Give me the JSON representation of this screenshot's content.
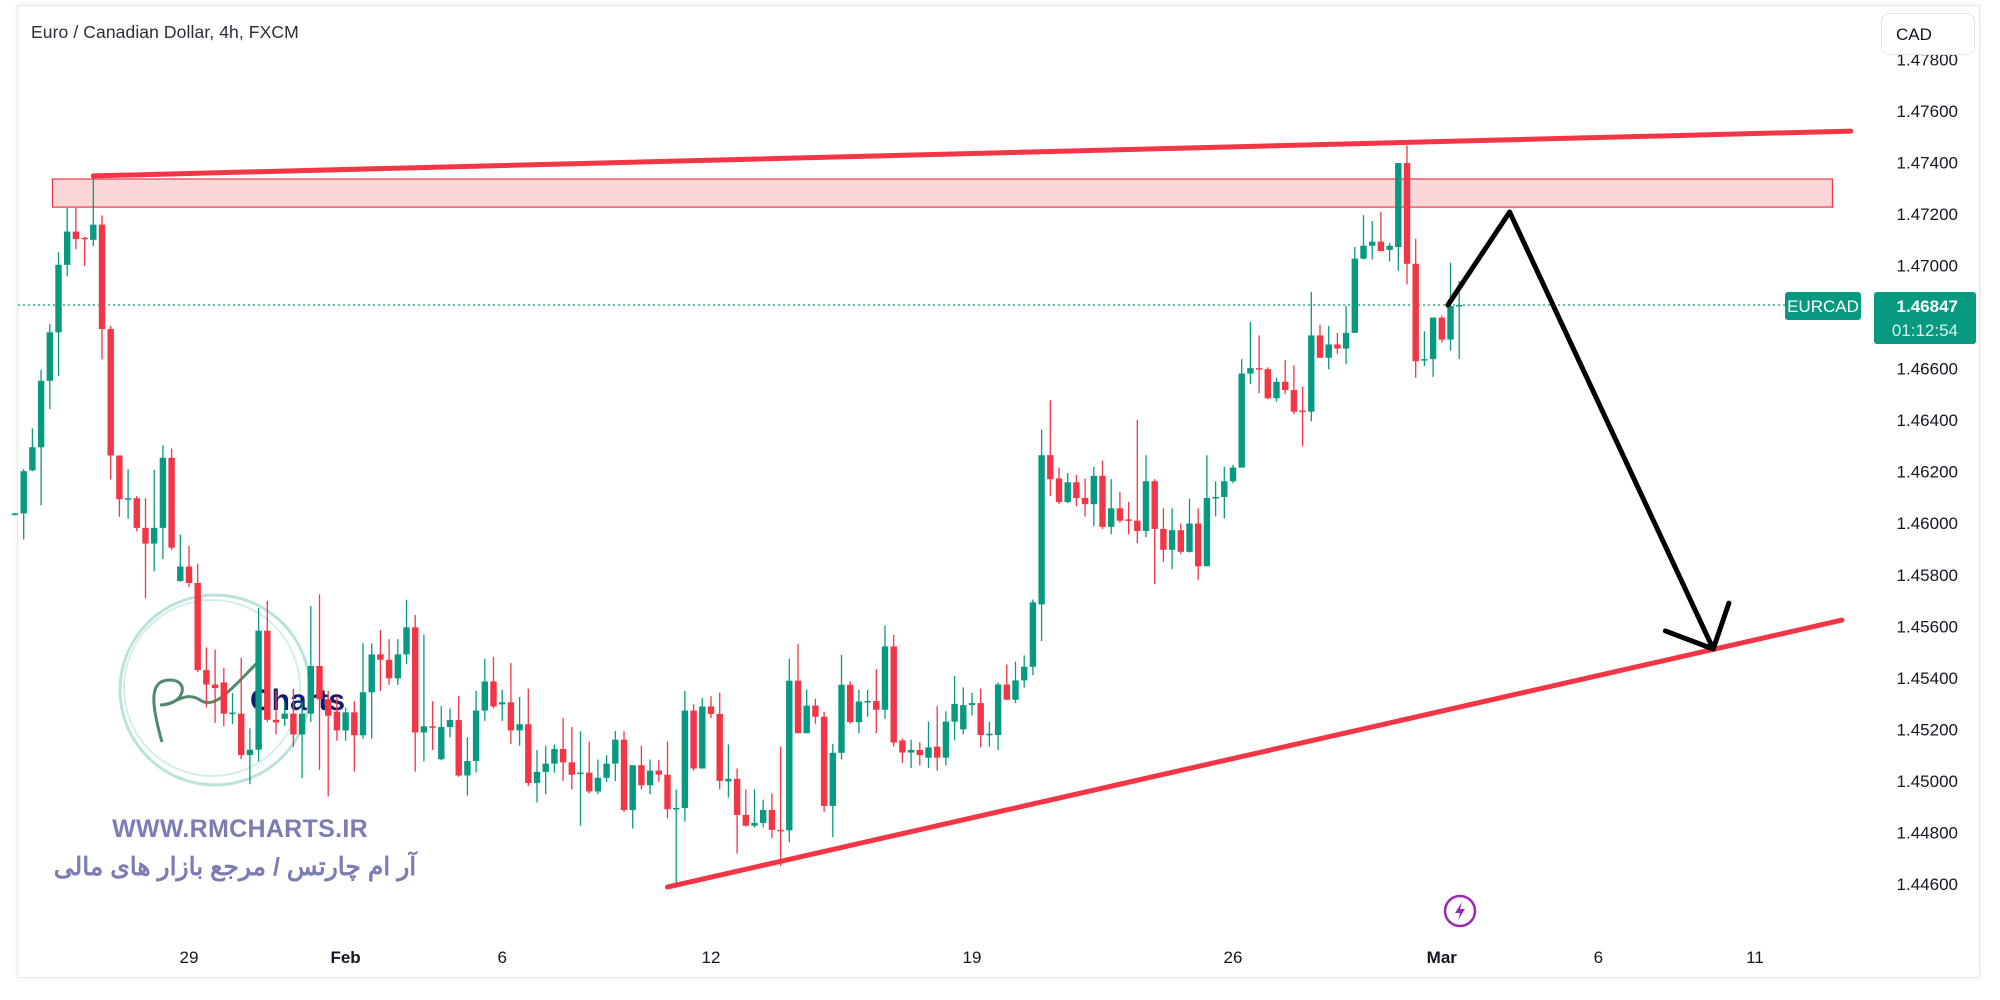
{
  "header": {
    "title": "Euro / Canadian Dollar, 4h, FXCM",
    "currency_button": "CAD"
  },
  "price_badge": {
    "symbol": "EURCAD",
    "price": "1.46847",
    "countdown": "01:12:54",
    "color": "#089981"
  },
  "watermark": {
    "logo_text": "Charts",
    "url": "WWW.RMCHARTS.IR",
    "tagline": "آر ام چارتس / مرجع بازار های مالی",
    "color": "#7b7cb3"
  },
  "event_icon": "lightning-icon",
  "colors": {
    "up": "#089981",
    "down": "#f23645",
    "drawing": "#f23645",
    "arrow": "#000000",
    "zone_fill": "#f2364533"
  },
  "chart_data": {
    "type": "candlestick",
    "title": "Euro / Canadian Dollar, 4h, FXCM",
    "symbol": "EURCAD",
    "interval": "4h",
    "ylim": [
      1.445,
      1.4785
    ],
    "grid": false,
    "y_ticks": [
      "1.47800",
      "1.47600",
      "1.47400",
      "1.47200",
      "1.47000",
      "1.46600",
      "1.46400",
      "1.46200",
      "1.46000",
      "1.45800",
      "1.45600",
      "1.45400",
      "1.45200",
      "1.45000",
      "1.44800",
      "1.44600"
    ],
    "x_ticks": [
      {
        "label": "29",
        "bar": 20,
        "bold": false
      },
      {
        "label": "Feb",
        "bar": 38,
        "bold": true
      },
      {
        "label": "6",
        "bar": 56,
        "bold": false
      },
      {
        "label": "12",
        "bar": 80,
        "bold": false
      },
      {
        "label": "19",
        "bar": 110,
        "bold": false
      },
      {
        "label": "26",
        "bar": 140,
        "bold": false
      },
      {
        "label": "Mar",
        "bar": 164,
        "bold": true
      },
      {
        "label": "6",
        "bar": 182,
        "bold": false
      },
      {
        "label": "11",
        "bar": 200,
        "bold": false
      }
    ],
    "last_price": 1.46847,
    "ohlc_fields": [
      "open",
      "high",
      "low",
      "close"
    ],
    "candles": [
      [
        1.46036,
        1.4604,
        1.4603,
        1.46038
      ],
      [
        1.46038,
        1.4621,
        1.45937,
        1.46202
      ],
      [
        1.46205,
        1.46368,
        1.46202,
        1.46295
      ],
      [
        1.46295,
        1.46596,
        1.4607,
        1.46553
      ],
      [
        1.46553,
        1.46773,
        1.46443,
        1.46741
      ],
      [
        1.46741,
        1.47052,
        1.46572,
        1.47003
      ],
      [
        1.47003,
        1.47224,
        1.46958,
        1.47132
      ],
      [
        1.47132,
        1.47224,
        1.47063,
        1.47103
      ],
      [
        1.47108,
        1.47111,
        1.46998,
        1.47103
      ],
      [
        1.471,
        1.47352,
        1.47076,
        1.47159
      ],
      [
        1.47159,
        1.47195,
        1.46636,
        1.46754
      ],
      [
        1.46754,
        1.46765,
        1.4617,
        1.46263
      ],
      [
        1.46263,
        1.46263,
        1.46025,
        1.46093
      ],
      [
        1.46093,
        1.4621,
        1.46017,
        1.46097
      ],
      [
        1.46097,
        1.46106,
        1.45969,
        1.45982
      ],
      [
        1.45982,
        1.46097,
        1.45708,
        1.45921
      ],
      [
        1.45921,
        1.46207,
        1.45813,
        1.45982
      ],
      [
        1.45982,
        1.46302,
        1.45861,
        1.46254
      ],
      [
        1.46254,
        1.4629,
        1.45896,
        1.45905
      ],
      [
        1.45776,
        1.45956,
        1.45773,
        1.45832
      ],
      [
        1.45832,
        1.45912,
        1.45752,
        1.45768
      ],
      [
        1.45768,
        1.45843,
        1.45422,
        1.4543
      ],
      [
        1.4543,
        1.45518,
        1.45285,
        1.45374
      ],
      [
        1.45374,
        1.4551,
        1.45225,
        1.4536
      ],
      [
        1.45382,
        1.45438,
        1.45212,
        1.45261
      ],
      [
        1.45261,
        1.45341,
        1.45221,
        1.45265
      ],
      [
        1.45261,
        1.45478,
        1.45084,
        1.451
      ],
      [
        1.451,
        1.45204,
        1.44987,
        1.45121
      ],
      [
        1.45121,
        1.45671,
        1.45076,
        1.45583
      ],
      [
        1.45583,
        1.45699,
        1.45229,
        1.45237
      ],
      [
        1.45237,
        1.4535,
        1.4518,
        1.45227
      ],
      [
        1.45241,
        1.45309,
        1.45213,
        1.45261
      ],
      [
        1.45261,
        1.45357,
        1.45132,
        1.4518
      ],
      [
        1.4518,
        1.45309,
        1.45011,
        1.45261
      ],
      [
        1.45261,
        1.45679,
        1.45229,
        1.45446
      ],
      [
        1.45446,
        1.45724,
        1.45043,
        1.45317
      ],
      [
        1.45317,
        1.4535,
        1.44939,
        1.45253
      ],
      [
        1.45269,
        1.45328,
        1.45156,
        1.45196
      ],
      [
        1.45196,
        1.45285,
        1.45156,
        1.45266
      ],
      [
        1.45266,
        1.45309,
        1.45036,
        1.45177
      ],
      [
        1.45177,
        1.45534,
        1.45164,
        1.45344
      ],
      [
        1.45344,
        1.45534,
        1.45164,
        1.45491
      ],
      [
        1.45491,
        1.45586,
        1.45349,
        1.4547
      ],
      [
        1.4547,
        1.4555,
        1.45373,
        1.45398
      ],
      [
        1.45398,
        1.4555,
        1.45373,
        1.45491
      ],
      [
        1.45491,
        1.45703,
        1.45454,
        1.45596
      ],
      [
        1.45596,
        1.45644,
        1.45036,
        1.45188
      ],
      [
        1.45188,
        1.45567,
        1.45076,
        1.45212
      ],
      [
        1.45212,
        1.45309,
        1.4512,
        1.4521
      ],
      [
        1.45084,
        1.4529,
        1.4508,
        1.45209
      ],
      [
        1.45209,
        1.45281,
        1.45169,
        1.45236
      ],
      [
        1.45236,
        1.45329,
        1.45016,
        1.45021
      ],
      [
        1.45021,
        1.45169,
        1.44943,
        1.45077
      ],
      [
        1.45077,
        1.45349,
        1.45032,
        1.45273
      ],
      [
        1.45273,
        1.45474,
        1.45233,
        1.45386
      ],
      [
        1.45386,
        1.45482,
        1.45281,
        1.45289
      ],
      [
        1.45297,
        1.45354,
        1.45233,
        1.45305
      ],
      [
        1.45305,
        1.45458,
        1.45144,
        1.45196
      ],
      [
        1.45196,
        1.45326,
        1.45136,
        1.4522
      ],
      [
        1.4522,
        1.45358,
        1.4498,
        1.44992
      ],
      [
        1.44992,
        1.4512,
        1.44916,
        1.45035
      ],
      [
        1.45035,
        1.45136,
        1.44948,
        1.45067
      ],
      [
        1.45067,
        1.45141,
        1.45032,
        1.45124
      ],
      [
        1.45124,
        1.45244,
        1.45,
        1.45072
      ],
      [
        1.45072,
        1.45209,
        1.44967,
        1.45024
      ],
      [
        1.45027,
        1.45193,
        1.44826,
        1.45032
      ],
      [
        1.45032,
        1.45153,
        1.44951,
        1.44959
      ],
      [
        1.44959,
        1.45083,
        1.44948,
        1.45012
      ],
      [
        1.45012,
        1.45099,
        1.44996,
        1.45067
      ],
      [
        1.45067,
        1.45193,
        1.44999,
        1.4516
      ],
      [
        1.4516,
        1.45193,
        1.44879,
        1.44887
      ],
      [
        1.44887,
        1.45061,
        1.44815,
        1.45061
      ],
      [
        1.45061,
        1.45136,
        1.44967,
        1.44983
      ],
      [
        1.44983,
        1.45083,
        1.44948,
        1.4504
      ],
      [
        1.4504,
        1.4508,
        1.44996,
        1.45024
      ],
      [
        1.45024,
        1.45153,
        1.44855,
        1.4489
      ],
      [
        1.4489,
        1.44967,
        1.44589,
        1.44895
      ],
      [
        1.44895,
        1.45349,
        1.44842,
        1.45273
      ],
      [
        1.45273,
        1.45297,
        1.4504,
        1.45048
      ],
      [
        1.45048,
        1.45321,
        1.45048,
        1.45289
      ],
      [
        1.45289,
        1.45329,
        1.45244,
        1.4526
      ],
      [
        1.4526,
        1.45342,
        1.44967,
        1.45
      ],
      [
        1.44998,
        1.45141,
        1.44935,
        1.45008
      ],
      [
        1.45008,
        1.45048,
        1.44718,
        1.44868
      ],
      [
        1.44868,
        1.44967,
        1.44823,
        1.44826
      ],
      [
        1.44826,
        1.44967,
        1.44819,
        1.44837
      ],
      [
        1.44837,
        1.44927,
        1.44819,
        1.44887
      ],
      [
        1.44887,
        1.44951,
        1.44778,
        1.4481
      ],
      [
        1.4481,
        1.45132,
        1.4467,
        1.44808
      ],
      [
        1.44808,
        1.45474,
        1.44762,
        1.45389
      ],
      [
        1.45389,
        1.45531,
        1.45185,
        1.45185
      ],
      [
        1.45185,
        1.45354,
        1.45185,
        1.45292
      ],
      [
        1.45292,
        1.45318,
        1.45222,
        1.45249
      ],
      [
        1.45249,
        1.45268,
        1.44879,
        1.44903
      ],
      [
        1.44903,
        1.45144,
        1.44782,
        1.45109
      ],
      [
        1.45109,
        1.4549,
        1.45083,
        1.45373
      ],
      [
        1.45373,
        1.45386,
        1.45222,
        1.45228
      ],
      [
        1.45228,
        1.45354,
        1.45185,
        1.45308
      ],
      [
        1.45308,
        1.45354,
        1.45249,
        1.4531
      ],
      [
        1.4531,
        1.45434,
        1.45185,
        1.45276
      ],
      [
        1.45276,
        1.45603,
        1.45241,
        1.45522
      ],
      [
        1.45522,
        1.45567,
        1.45133,
        1.45149
      ],
      [
        1.45157,
        1.45165,
        1.4507,
        1.4511
      ],
      [
        1.4511,
        1.4516,
        1.4505,
        1.4512
      ],
      [
        1.4512,
        1.4515,
        1.4506,
        1.451
      ],
      [
        1.4509,
        1.4523,
        1.4505,
        1.4513
      ],
      [
        1.45133,
        1.4529,
        1.4504,
        1.4509
      ],
      [
        1.4509,
        1.4527,
        1.4506,
        1.4523
      ],
      [
        1.4523,
        1.45407,
        1.45157,
        1.45299
      ],
      [
        1.452,
        1.45363,
        1.45181,
        1.45294
      ],
      [
        1.45294,
        1.45342,
        1.45254,
        1.45302
      ],
      [
        1.45302,
        1.45358,
        1.4513,
        1.45178
      ],
      [
        1.45178,
        1.4523,
        1.45133,
        1.45183
      ],
      [
        1.45178,
        1.45382,
        1.4512,
        1.45374
      ],
      [
        1.45374,
        1.45452,
        1.45315,
        1.45315
      ],
      [
        1.45315,
        1.45463,
        1.45302,
        1.4539
      ],
      [
        1.4539,
        1.45487,
        1.45362,
        1.45443
      ],
      [
        1.45443,
        1.45704,
        1.4541,
        1.45693
      ],
      [
        1.45685,
        1.46364,
        1.45543,
        1.46264
      ],
      [
        1.46264,
        1.46477,
        1.46106,
        1.46171
      ],
      [
        1.46174,
        1.46216,
        1.46074,
        1.46082
      ],
      [
        1.46082,
        1.46195,
        1.46079,
        1.46159
      ],
      [
        1.46159,
        1.46187,
        1.46066,
        1.46098
      ],
      [
        1.46098,
        1.46174,
        1.46026,
        1.46074
      ],
      [
        1.46074,
        1.46219,
        1.45989,
        1.46184
      ],
      [
        1.46184,
        1.46243,
        1.45978,
        1.45986
      ],
      [
        1.45986,
        1.46171,
        1.45957,
        1.46058
      ],
      [
        1.46058,
        1.46122,
        1.46002,
        1.4601
      ],
      [
        1.46015,
        1.46082,
        1.45957,
        1.4601
      ],
      [
        1.4601,
        1.46401,
        1.45922,
        1.4597
      ],
      [
        1.4597,
        1.46264,
        1.45946,
        1.46163
      ],
      [
        1.46163,
        1.46171,
        1.45764,
        1.45978
      ],
      [
        1.45978,
        1.46058,
        1.45849,
        1.45897
      ],
      [
        1.45897,
        1.46058,
        1.45822,
        1.45973
      ],
      [
        1.45973,
        1.45999,
        1.45881,
        1.45889
      ],
      [
        1.45889,
        1.46095,
        1.45886,
        1.45999
      ],
      [
        1.45999,
        1.46058,
        1.4578,
        1.45833
      ],
      [
        1.45833,
        1.46264,
        1.45833,
        1.46098
      ],
      [
        1.46098,
        1.46163,
        1.46026,
        1.46102
      ],
      [
        1.46102,
        1.46219,
        1.46018,
        1.46163
      ],
      [
        1.46163,
        1.46227,
        1.46155,
        1.46216
      ],
      [
        1.46216,
        1.46637,
        1.46216,
        1.46581
      ],
      [
        1.46581,
        1.46782,
        1.46541,
        1.46602
      ],
      [
        1.46602,
        1.46729,
        1.46504,
        1.46598
      ],
      [
        1.46598,
        1.46605,
        1.46481,
        1.46485
      ],
      [
        1.46485,
        1.46565,
        1.46472,
        1.46549
      ],
      [
        1.46549,
        1.46633,
        1.46501,
        1.46517
      ],
      [
        1.46517,
        1.46613,
        1.46423,
        1.46433
      ],
      [
        1.46437,
        1.4653,
        1.46299,
        1.46433
      ],
      [
        1.46433,
        1.46898,
        1.46396,
        1.46729
      ],
      [
        1.46729,
        1.46771,
        1.46642,
        1.46642
      ],
      [
        1.46642,
        1.46766,
        1.46597,
        1.46694
      ],
      [
        1.46694,
        1.46739,
        1.46658,
        1.46678
      ],
      [
        1.46678,
        1.46843,
        1.46617,
        1.46739
      ],
      [
        1.46739,
        1.47072,
        1.46739,
        1.47027
      ],
      [
        1.47027,
        1.47196,
        1.47024,
        1.47077
      ],
      [
        1.47077,
        1.47173,
        1.47024,
        1.47093
      ],
      [
        1.47093,
        1.47209,
        1.47056,
        1.47056
      ],
      [
        1.47061,
        1.47088,
        1.47016,
        1.47077
      ],
      [
        1.47072,
        1.47398,
        1.4698,
        1.47398
      ],
      [
        1.47398,
        1.47466,
        1.46927,
        1.47007
      ],
      [
        1.47007,
        1.47104,
        1.46565,
        1.46629
      ],
      [
        1.46633,
        1.46745,
        1.4661,
        1.46637
      ],
      [
        1.46637,
        1.46798,
        1.46568,
        1.46798
      ],
      [
        1.46798,
        1.46806,
        1.46702,
        1.46713
      ],
      [
        1.46713,
        1.47011,
        1.4667,
        1.46843
      ],
      [
        1.46843,
        1.4694,
        1.46637,
        1.46847
      ]
    ],
    "drawings": {
      "resistance_trendline": [
        [
          9,
          1.47348
        ],
        [
          211,
          1.47522
        ]
      ],
      "supply_zone": {
        "from_bar": 4.3,
        "to_bar": 208.9,
        "top": 1.47336,
        "bottom": 1.47227
      },
      "support_trendline": [
        [
          75,
          1.44588
        ],
        [
          210,
          1.45624
        ]
      ],
      "projection_arrow": [
        [
          164.7,
          1.46847
        ],
        [
          171.8,
          1.47208
        ],
        [
          195.2,
          1.45512
        ]
      ],
      "arrow_head": [
        [
          189.7,
          1.45582
        ],
        [
          195.2,
          1.45512
        ],
        [
          197,
          1.4569
        ]
      ]
    }
  }
}
